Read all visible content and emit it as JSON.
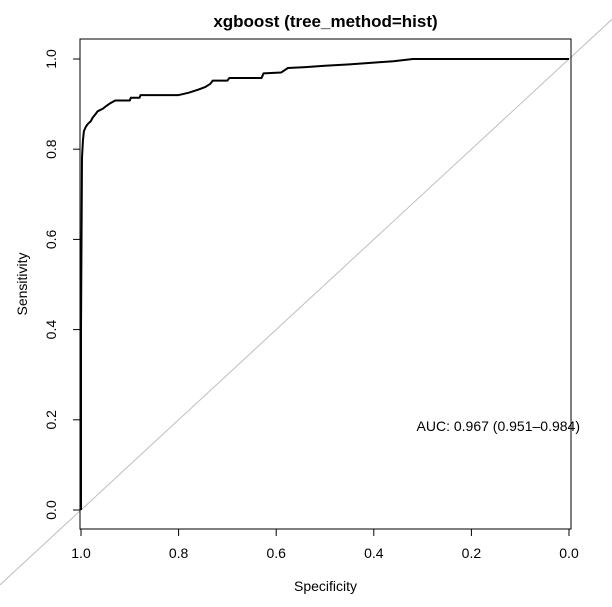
{
  "chart_data": {
    "type": "line",
    "title": "xgboost (tree_method=hist)",
    "xlabel": "Specificity",
    "ylabel": "Sensitivity",
    "xlim": [
      1.0,
      0.0
    ],
    "ylim": [
      0.0,
      1.0
    ],
    "x_ticks": [
      "1.0",
      "0.8",
      "0.6",
      "0.4",
      "0.2",
      "0.0"
    ],
    "y_ticks": [
      "0.0",
      "0.2",
      "0.4",
      "0.6",
      "0.8",
      "1.0"
    ],
    "grid": false,
    "legend": "none",
    "annotation": "AUC: 0.967 (0.951–0.984)",
    "line_color": "#000000",
    "reference_line_color": "#bebebe",
    "series": [
      {
        "points": [
          [
            1.0,
            0.0
          ],
          [
            1.0,
            0.4
          ],
          [
            0.998,
            0.78
          ],
          [
            0.996,
            0.82
          ],
          [
            0.994,
            0.84
          ],
          [
            0.99,
            0.85
          ],
          [
            0.986,
            0.856
          ],
          [
            0.98,
            0.862
          ],
          [
            0.976,
            0.87
          ],
          [
            0.97,
            0.878
          ],
          [
            0.966,
            0.884
          ],
          [
            0.955,
            0.89
          ],
          [
            0.948,
            0.896
          ],
          [
            0.94,
            0.902
          ],
          [
            0.93,
            0.908
          ],
          [
            0.9,
            0.908
          ],
          [
            0.898,
            0.914
          ],
          [
            0.88,
            0.914
          ],
          [
            0.878,
            0.92
          ],
          [
            0.8,
            0.92
          ],
          [
            0.78,
            0.925
          ],
          [
            0.76,
            0.932
          ],
          [
            0.745,
            0.938
          ],
          [
            0.735,
            0.945
          ],
          [
            0.73,
            0.952
          ],
          [
            0.7,
            0.952
          ],
          [
            0.696,
            0.958
          ],
          [
            0.63,
            0.958
          ],
          [
            0.626,
            0.968
          ],
          [
            0.59,
            0.97
          ],
          [
            0.576,
            0.98
          ],
          [
            0.54,
            0.982
          ],
          [
            0.5,
            0.985
          ],
          [
            0.45,
            0.988
          ],
          [
            0.4,
            0.992
          ],
          [
            0.36,
            0.995
          ],
          [
            0.32,
            1.0
          ],
          [
            0.0,
            1.0
          ]
        ]
      }
    ]
  }
}
